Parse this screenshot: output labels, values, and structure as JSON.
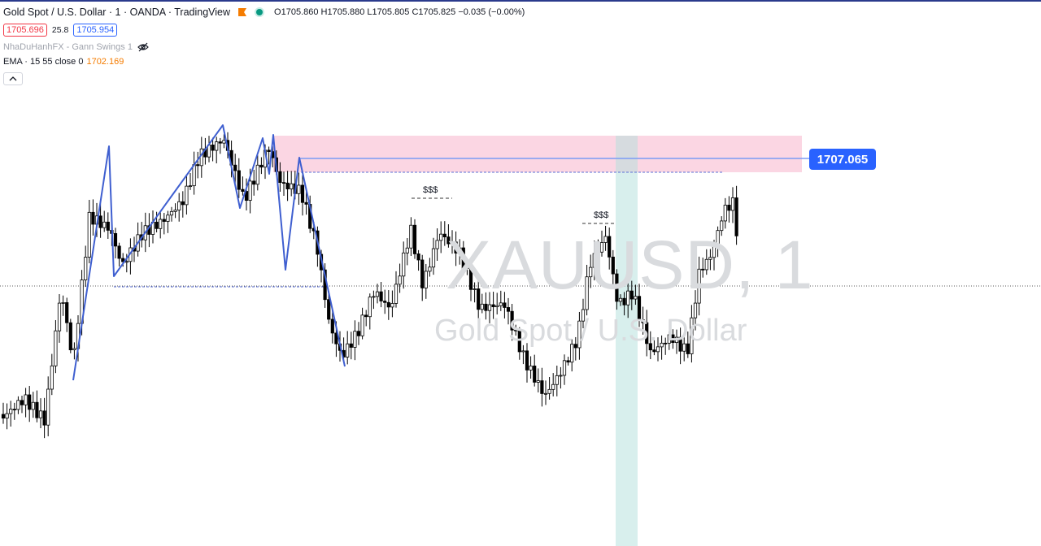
{
  "legend": {
    "title": "Gold Spot / U.S. Dollar · 1 · OANDA · TradingView",
    "ohlc": "O1705.860 H1705.880 L1705.805 C1705.825 −0.035 (−0.00%)",
    "sell_price": "1705.696",
    "spread": "25.8",
    "buy_price": "1705.954"
  },
  "indicators": [
    {
      "label": "NhaDuHanhFX - Gann Swings 1"
    },
    {
      "label": "EMA · 15 55 close 0",
      "value": "1702.169"
    }
  ],
  "watermark": {
    "symbol": "XAUUSD, 1",
    "description": "Gold Spot / U.S. Dollar"
  },
  "price_label": "1707.065",
  "liquidity_labels": [
    "$$$",
    "$$$"
  ],
  "icons": {
    "hide": "eye-slash-icon",
    "collapse": "chevron-up-icon",
    "flag": "flag-icon",
    "status": "market-open-dot-icon"
  },
  "colors": {
    "zone": "#f8bbd0",
    "swing_line": "#2962ff",
    "highlight": "#b2dfdb",
    "up": "#ffffff",
    "down": "#000000",
    "ema": "#f57c00"
  }
}
